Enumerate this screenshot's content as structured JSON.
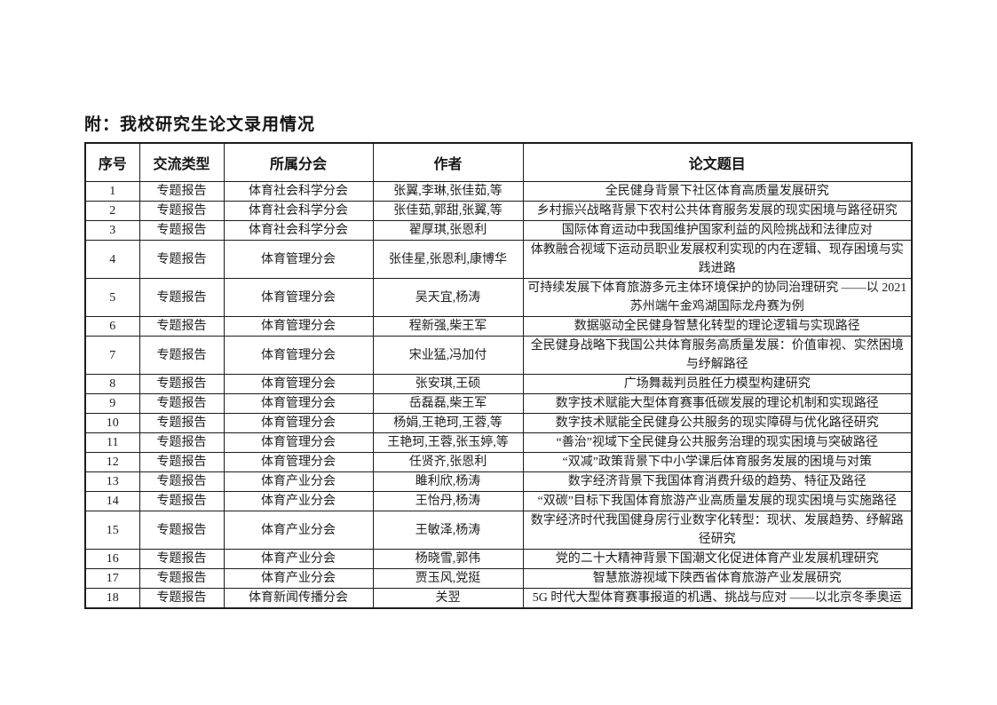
{
  "page": {
    "title": "附：我校研究生论文录用情况"
  },
  "table": {
    "headers": [
      "序号",
      "交流类型",
      "所属分会",
      "作者",
      "论文题目"
    ],
    "rows": [
      {
        "no": "1",
        "type": "专题报告",
        "branch": "体育社会科学分会",
        "authors": "张翼,李琳,张佳茹,等",
        "title": "全民健身背景下社区体育高质量发展研究"
      },
      {
        "no": "2",
        "type": "专题报告",
        "branch": "体育社会科学分会",
        "authors": "张佳茹,郭甜,张翼,等",
        "title": "乡村振兴战略背景下农村公共体育服务发展的现实困境与路径研究"
      },
      {
        "no": "3",
        "type": "专题报告",
        "branch": "体育社会科学分会",
        "authors": "翟厚琪,张恩利",
        "title": "国际体育运动中我国维护国家利益的风险挑战和法律应对"
      },
      {
        "no": "4",
        "type": "专题报告",
        "branch": "体育管理分会",
        "authors": "张佳星,张恩利,康博华",
        "title": "体教融合视域下运动员职业发展权利实现的内在逻辑、现存困境与实践进路"
      },
      {
        "no": "5",
        "type": "专题报告",
        "branch": "体育管理分会",
        "authors": "吴天宜,杨涛",
        "title": "可持续发展下体育旅游多元主体环境保护的协同治理研究 ——以 2021 苏州端午金鸡湖国际龙舟赛为例"
      },
      {
        "no": "6",
        "type": "专题报告",
        "branch": "体育管理分会",
        "authors": "程新强,柴王军",
        "title": "数据驱动全民健身智慧化转型的理论逻辑与实现路径"
      },
      {
        "no": "7",
        "type": "专题报告",
        "branch": "体育管理分会",
        "authors": "宋业猛,冯加付",
        "title": "全民健身战略下我国公共体育服务高质量发展：价值审视、实然困境与纾解路径"
      },
      {
        "no": "8",
        "type": "专题报告",
        "branch": "体育管理分会",
        "authors": "张安琪,王硕",
        "title": "广场舞裁判员胜任力模型构建研究"
      },
      {
        "no": "9",
        "type": "专题报告",
        "branch": "体育管理分会",
        "authors": "岳磊磊,柴王军",
        "title": "数字技术赋能大型体育赛事低碳发展的理论机制和实现路径"
      },
      {
        "no": "10",
        "type": "专题报告",
        "branch": "体育管理分会",
        "authors": "杨娟,王艳珂,王蓉,等",
        "title": "数字技术赋能全民健身公共服务的现实障碍与优化路径研究"
      },
      {
        "no": "11",
        "type": "专题报告",
        "branch": "体育管理分会",
        "authors": "王艳珂,王蓉,张玉婷,等",
        "title": "“善治”视域下全民健身公共服务治理的现实困境与突破路径"
      },
      {
        "no": "12",
        "type": "专题报告",
        "branch": "体育管理分会",
        "authors": "任贤齐,张恩利",
        "title": "“双减”政策背景下中小学课后体育服务发展的困境与对策"
      },
      {
        "no": "13",
        "type": "专题报告",
        "branch": "体育产业分会",
        "authors": "雎利欣,杨涛",
        "title": "数字经济背景下我国体育消费升级的趋势、特征及路径"
      },
      {
        "no": "14",
        "type": "专题报告",
        "branch": "体育产业分会",
        "authors": "王怡丹,杨涛",
        "title": "“双碳”目标下我国体育旅游产业高质量发展的现实困境与实施路径"
      },
      {
        "no": "15",
        "type": "专题报告",
        "branch": "体育产业分会",
        "authors": "王敏泽,杨涛",
        "title": "数字经济时代我国健身房行业数字化转型：现状、发展趋势、纾解路径研究"
      },
      {
        "no": "16",
        "type": "专题报告",
        "branch": "体育产业分会",
        "authors": "杨晓雪,郭伟",
        "title": "党的二十大精神背景下国潮文化促进体育产业发展机理研究"
      },
      {
        "no": "17",
        "type": "专题报告",
        "branch": "体育产业分会",
        "authors": "贾玉风,党挺",
        "title": "智慧旅游视域下陕西省体育旅游产业发展研究"
      },
      {
        "no": "18",
        "type": "专题报告",
        "branch": "体育新闻传播分会",
        "authors": "关翌",
        "title": "5G 时代大型体育赛事报道的机遇、挑战与应对 ——以北京冬季奥运"
      }
    ]
  }
}
